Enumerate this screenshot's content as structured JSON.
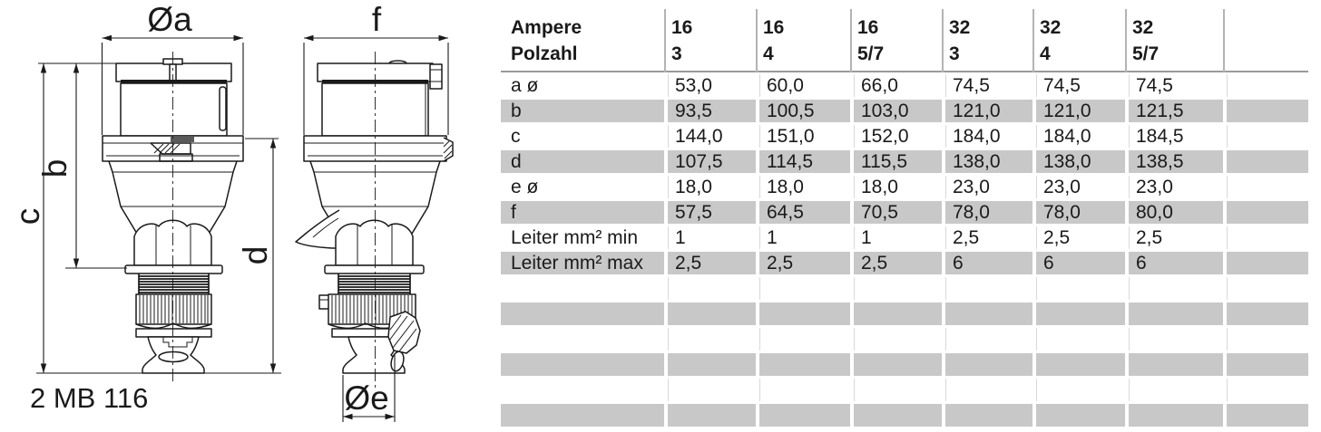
{
  "drawing": {
    "caption": "2 MB 116",
    "dimension_labels": {
      "a": "Øa",
      "b": "b",
      "c": "c",
      "d": "d",
      "e": "Øe",
      "f": "f"
    }
  },
  "table": {
    "header": {
      "row_label_line1": "Ampere",
      "row_label_line2": "Polzahl",
      "columns": [
        {
          "ampere": "16",
          "polzahl": "3"
        },
        {
          "ampere": "16",
          "polzahl": "4"
        },
        {
          "ampere": "16",
          "polzahl": "5/7"
        },
        {
          "ampere": "32",
          "polzahl": "3"
        },
        {
          "ampere": "32",
          "polzahl": "4"
        },
        {
          "ampere": "32",
          "polzahl": "5/7"
        }
      ]
    },
    "rows": [
      {
        "label": "a ø",
        "values": [
          "53,0",
          "60,0",
          "66,0",
          "74,5",
          "74,5",
          "74,5"
        ]
      },
      {
        "label": "b",
        "values": [
          "93,5",
          "100,5",
          "103,0",
          "121,0",
          "121,0",
          "121,5"
        ]
      },
      {
        "label": "c",
        "values": [
          "144,0",
          "151,0",
          "152,0",
          "184,0",
          "184,0",
          "184,5"
        ]
      },
      {
        "label": "d",
        "values": [
          "107,5",
          "114,5",
          "115,5",
          "138,0",
          "138,0",
          "138,5"
        ]
      },
      {
        "label": "e ø",
        "values": [
          "18,0",
          "18,0",
          "18,0",
          "23,0",
          "23,0",
          "23,0"
        ]
      },
      {
        "label": "f",
        "values": [
          "57,5",
          "64,5",
          "70,5",
          "78,0",
          "78,0",
          "80,0"
        ]
      },
      {
        "label": "Leiter mm² min",
        "values": [
          "1",
          "1",
          "1",
          "2,5",
          "2,5",
          "2,5"
        ]
      },
      {
        "label": "Leiter mm² max",
        "values": [
          "2,5",
          "2,5",
          "2,5",
          "6",
          "6",
          "6"
        ]
      }
    ],
    "empty_rows": 6,
    "colors": {
      "stripe": "#c8c8c8",
      "header_rule": "#9a9a9a",
      "header_divider": "#b3b3b3",
      "text": "#1a1a1a"
    }
  }
}
